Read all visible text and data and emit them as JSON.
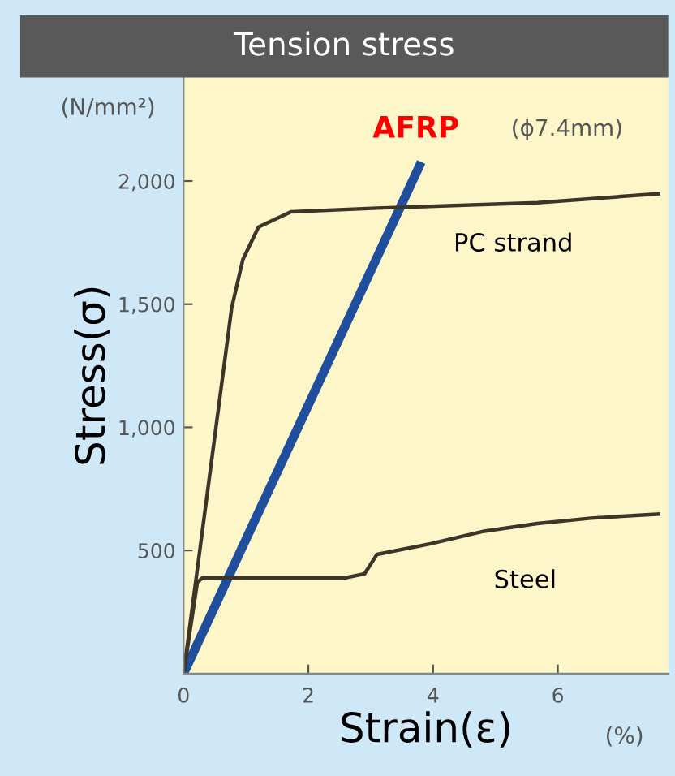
{
  "chart_data": {
    "type": "line",
    "title": "Tension stress",
    "xlabel": "Strain(ε)",
    "ylabel": "Stress(σ)",
    "annotations": [
      "(N/mm²)",
      "(ϕ7.4mm)",
      "(%)"
    ],
    "xlim": [
      0,
      7.77
    ],
    "ylim": [
      0,
      2420
    ],
    "xticks": [
      0,
      2,
      4,
      6
    ],
    "yticks": [
      {
        "value": 500,
        "label": "500"
      },
      {
        "value": 1000,
        "label": "1,000"
      },
      {
        "value": 1500,
        "label": "1,500"
      },
      {
        "value": 2000,
        "label": "2,000"
      }
    ],
    "grid": false,
    "legend": false,
    "marker": "none",
    "line_style": "solid",
    "series": [
      {
        "name": "AFRP",
        "color": "#1f4e9c",
        "x": [
          0,
          3.81
        ],
        "values": [
          0,
          2077
        ]
      },
      {
        "name": "PC strand",
        "color": "#3d3528",
        "x": [
          0,
          0.77,
          0.95,
          1.2,
          1.72,
          3.1,
          5.67,
          7.64
        ],
        "values": [
          0,
          1484,
          1681,
          1813,
          1875,
          1890,
          1912,
          1949
        ]
      },
      {
        "name": "Steel",
        "color": "#3d3528",
        "x": [
          0,
          0.22,
          0.3,
          1.5,
          2.6,
          2.9,
          3.1,
          3.96,
          4.82,
          5.67,
          6.53,
          7.64
        ],
        "values": [
          0,
          370,
          389,
          389,
          389,
          405,
          484,
          527,
          578,
          609,
          631,
          648
        ]
      }
    ]
  }
}
